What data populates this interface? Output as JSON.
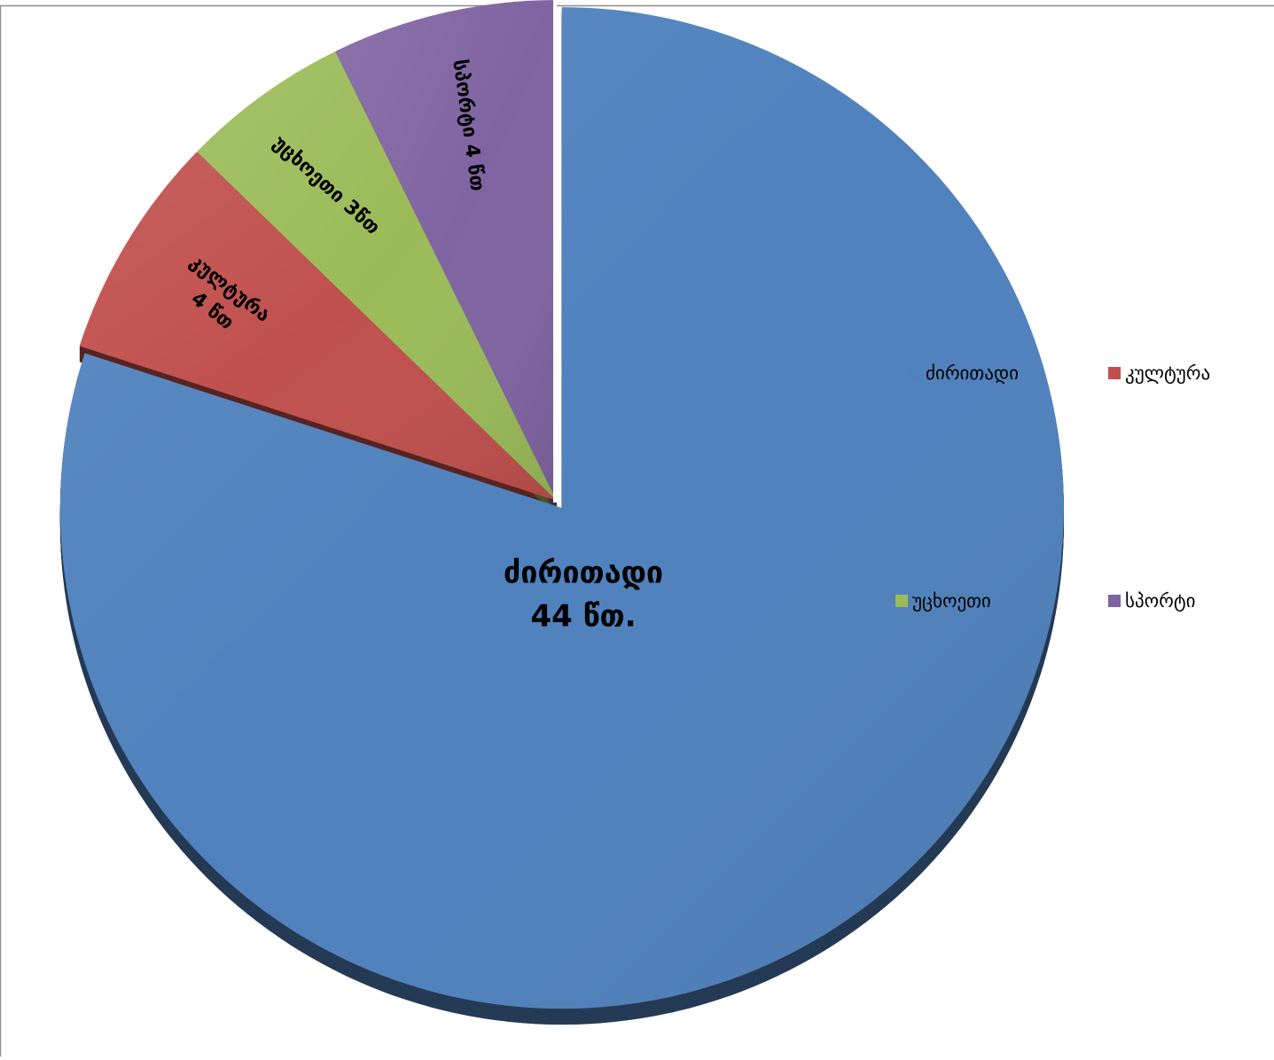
{
  "chart_data": {
    "type": "pie",
    "slices": [
      {
        "label": "ძირითადი",
        "value": 44,
        "data_label_lines": [
          "ძირითადი",
          "44 წთ."
        ],
        "color": "#4F81BD"
      },
      {
        "label": "კულტურა",
        "value": 4,
        "data_label_lines": [
          "კულტურა",
          "4 წთ"
        ],
        "color": "#C0504D"
      },
      {
        "label": "უცხოეთი",
        "value": 3,
        "data_label_lines": [
          "უცხოეთი 3წთ"
        ],
        "color": "#9BBB59"
      },
      {
        "label": "სპორტი",
        "value": 4,
        "data_label_lines": [
          "სპორტი 4 წთ"
        ],
        "color": "#8064A2"
      }
    ],
    "legend": {
      "position": "right",
      "entries": [
        "ძირითადი",
        "კულტურა",
        "უცხოეთი",
        "სპორტი"
      ]
    },
    "start_angle": "12 o'clock",
    "direction": "clockwise",
    "exploded_slice": "ძირითადი",
    "style": "3d"
  }
}
